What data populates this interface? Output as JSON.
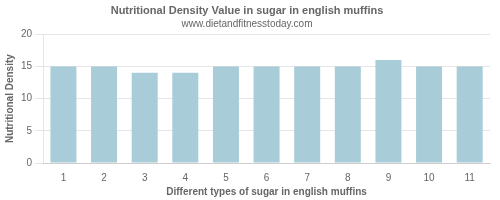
{
  "chart_data": {
    "type": "bar",
    "title": "Nutritional Density Value in sugar in english muffins",
    "subtitle": "www.dietandfitnesstoday.com",
    "xlabel": "Different types of sugar in english muffins",
    "ylabel": "Nutritional Density",
    "categories": [
      1,
      2,
      3,
      4,
      5,
      6,
      7,
      8,
      9,
      10,
      11
    ],
    "values": [
      15,
      15,
      14,
      14,
      15,
      15,
      15,
      15,
      16,
      15,
      15
    ],
    "color": "#a8ccd8",
    "ylim": [
      0,
      20
    ],
    "yticks": [
      0,
      5,
      10,
      15,
      20
    ],
    "grid": true
  }
}
